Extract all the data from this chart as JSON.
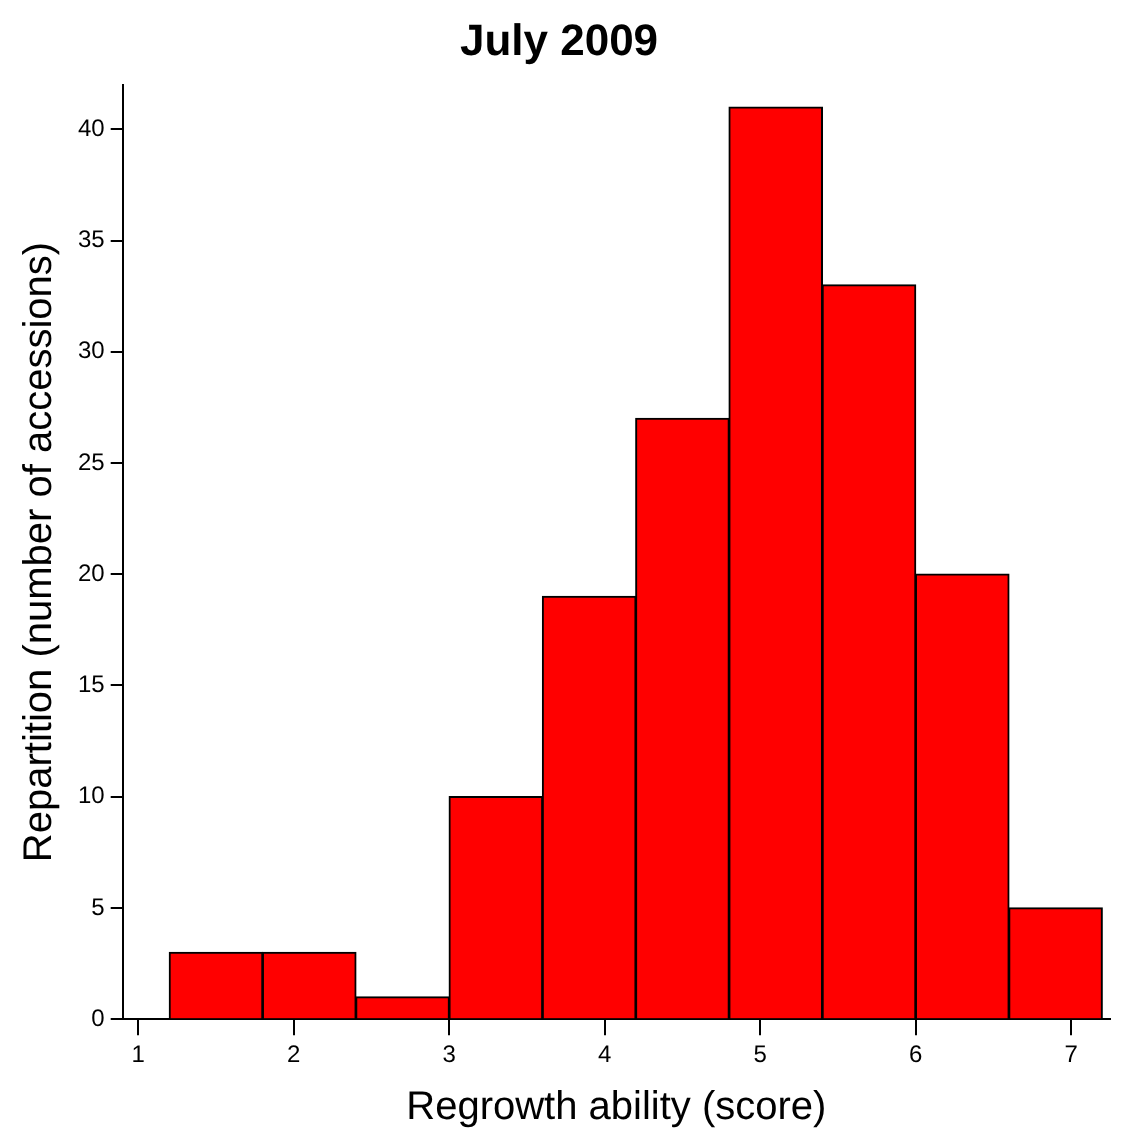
{
  "chart_data": {
    "type": "histogram",
    "title": "July 2009",
    "xlabel": "Regrowth ability (score)",
    "ylabel": "Repartition (number of accessions)",
    "bins": [
      1.2,
      1.8,
      2.4,
      3.0,
      3.6,
      4.2,
      4.8,
      5.4,
      6.0,
      6.6,
      7.2
    ],
    "values": [
      3,
      3,
      1,
      10,
      19,
      27,
      41,
      33,
      20,
      5
    ],
    "color": "#ff0000",
    "xlim": [
      0.9,
      7.25
    ],
    "xticks": [
      1,
      2,
      3,
      4,
      5,
      6,
      7
    ],
    "ylim": [
      0,
      42
    ],
    "yticks": [
      0,
      5,
      10,
      15,
      20,
      25,
      30,
      35,
      40
    ],
    "grid": false,
    "legend": false
  }
}
